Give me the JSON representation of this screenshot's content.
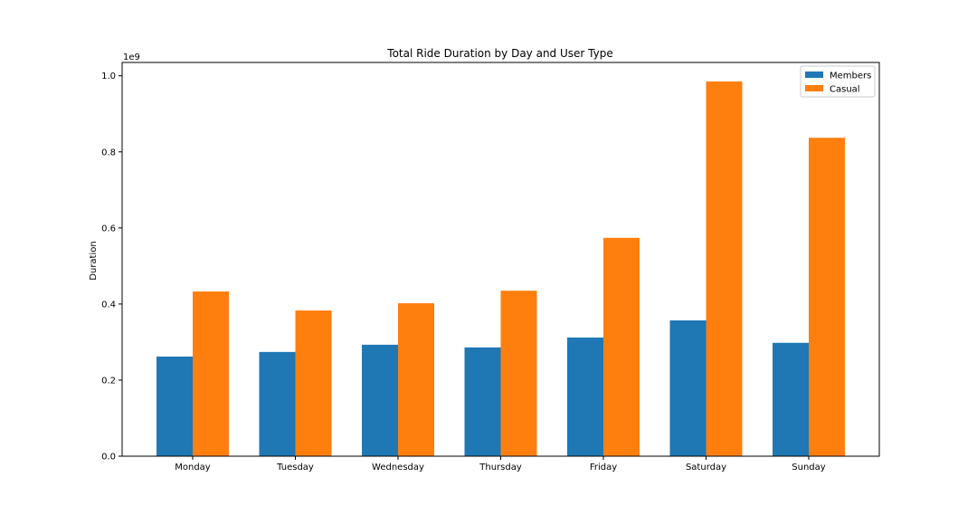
{
  "chart_data": {
    "type": "bar",
    "title": "Total Ride Duration by Day and User Type",
    "xlabel": "",
    "ylabel": "Duration",
    "scale_label": "1e9",
    "categories": [
      "Monday",
      "Tuesday",
      "Wednesday",
      "Thursday",
      "Friday",
      "Saturday",
      "Sunday"
    ],
    "series": [
      {
        "name": "Members",
        "color": "#1f77b4",
        "values": [
          0.262,
          0.274,
          0.293,
          0.286,
          0.312,
          0.357,
          0.298
        ]
      },
      {
        "name": "Casual",
        "color": "#ff7f0e",
        "values": [
          0.433,
          0.383,
          0.402,
          0.435,
          0.574,
          0.985,
          0.837
        ]
      }
    ],
    "ylim": [
      0,
      1.035
    ],
    "yticks": [
      "0.0",
      "0.2",
      "0.4",
      "0.6",
      "0.8",
      "1.0"
    ],
    "ytick_values": [
      0.0,
      0.2,
      0.4,
      0.6,
      0.8,
      1.0
    ],
    "legend": "top-right",
    "grid": false
  }
}
